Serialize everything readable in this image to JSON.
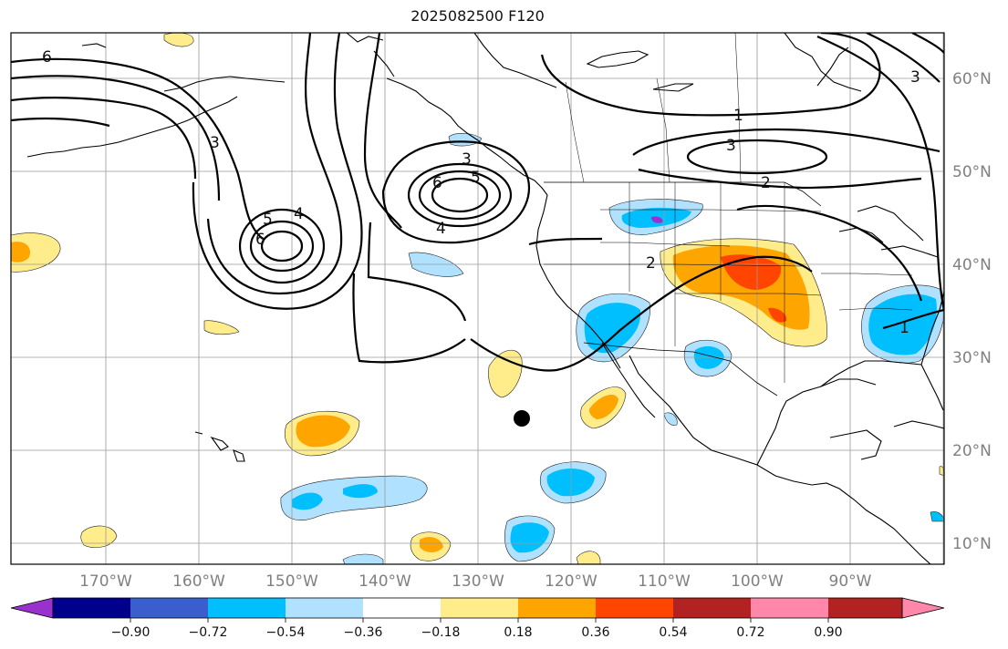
{
  "title": "2025082500 F120",
  "map": {
    "lon_labels": [
      "170°W",
      "160°W",
      "150°W",
      "140°W",
      "130°W",
      "120°W",
      "110°W",
      "100°W",
      "90°W"
    ],
    "lat_labels": [
      "60°N",
      "50°N",
      "40°N",
      "30°N",
      "20°N",
      "10°N"
    ],
    "contour_labels": [
      "6",
      "3",
      "5",
      "6",
      "4",
      "3",
      "6",
      "5",
      "4",
      "1",
      "3",
      "2",
      "2",
      "1",
      "3"
    ],
    "marker": "storm-position-dot"
  },
  "colorbar": {
    "ticks": [
      "−0.90",
      "−0.72",
      "−0.54",
      "−0.36",
      "−0.18",
      "0.18",
      "0.36",
      "0.54",
      "0.72",
      "0.90"
    ],
    "colors": [
      "#9932CC",
      "#00008B",
      "#3A5FCD",
      "#00BFFF",
      "#B0E2FF",
      "#FFFFFF",
      "#FFEC8B",
      "#FFA500",
      "#FF4500",
      "#B22222",
      "#FF88AA"
    ]
  }
}
